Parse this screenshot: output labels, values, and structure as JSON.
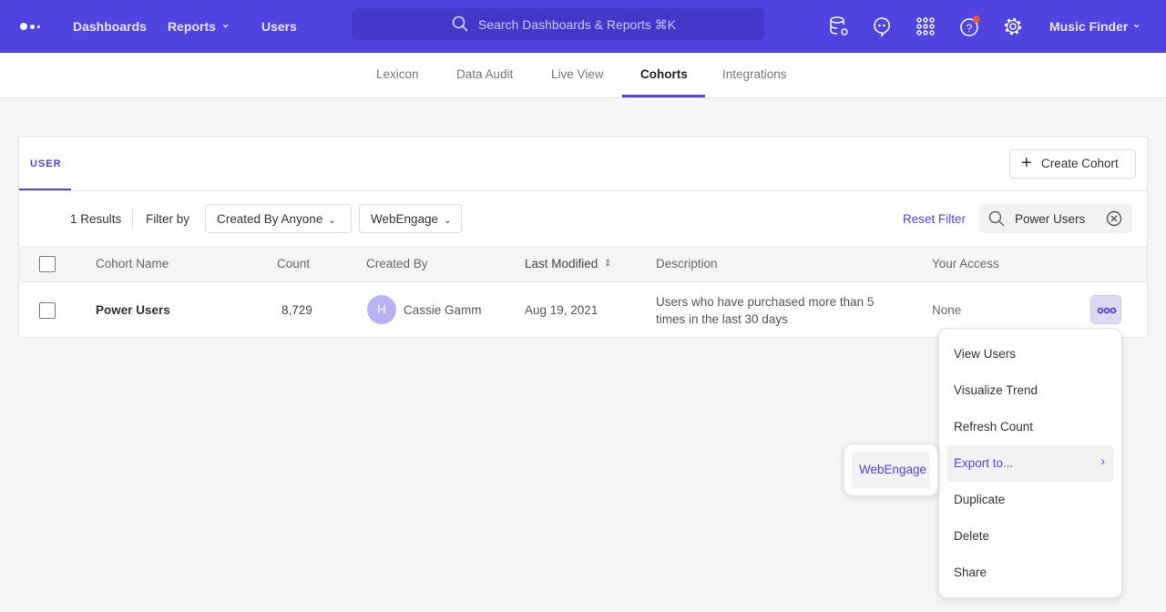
{
  "topbar": {
    "nav": [
      "Dashboards",
      "Reports",
      "Users"
    ],
    "search_placeholder": "Search Dashboards & Reports ⌘K",
    "project": "Music Finder",
    "icons": [
      "logo-icon",
      "data-settings-icon",
      "chat-icon",
      "apps-grid-icon",
      "help-icon",
      "settings-icon"
    ],
    "accent": "#4f44e0",
    "notification_color": "#e8543a"
  },
  "subnav": {
    "tabs": [
      "Lexicon",
      "Data Audit",
      "Live View",
      "Cohorts",
      "Integrations"
    ],
    "active": "Cohorts"
  },
  "panel": {
    "tab": "USER",
    "create_label": "Create Cohort",
    "results": "1 Results",
    "filter_by": "Filter by",
    "filter1": "Created By Anyone",
    "filter2": "WebEngage",
    "reset": "Reset Filter",
    "search_value": "Power Users",
    "columns": [
      "Cohort Name",
      "Count",
      "Created By",
      "Last Modified",
      "Description",
      "Your Access"
    ],
    "rows": [
      {
        "name": "Power Users",
        "count": "8,729",
        "avatar": "H",
        "created_by": "Cassie Gamm",
        "modified": "Aug 19, 2021",
        "description": "Users who have purchased more than 5 times in the last 30 days",
        "access": "None"
      }
    ]
  },
  "menu": {
    "items": [
      "View Users",
      "Visualize Trend",
      "Refresh Count",
      "Export to...",
      "Duplicate",
      "Delete",
      "Share"
    ],
    "submenu": [
      "WebEngage"
    ]
  }
}
